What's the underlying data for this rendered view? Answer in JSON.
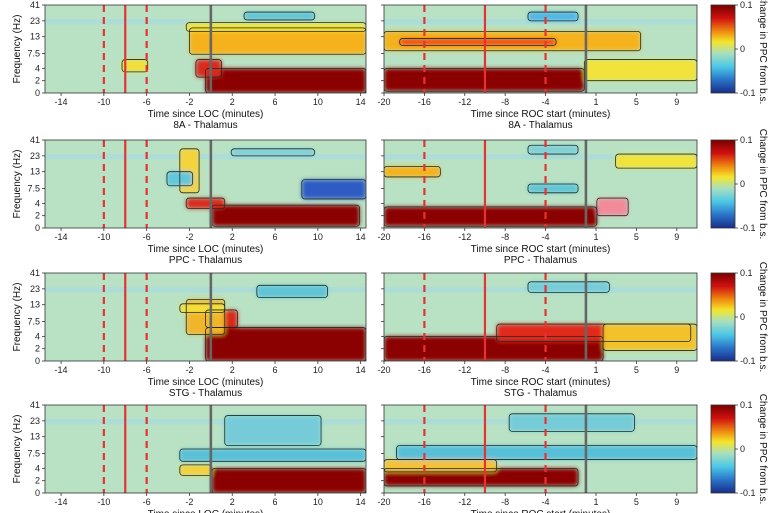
{
  "chart_data": {
    "type": "heatmap",
    "colorbar_ticks": [
      "0.1",
      "0",
      "-0.1"
    ],
    "colorbar_range": [
      -0.1,
      0.1
    ],
    "colorbar_label": "Change in PPC from b.s.",
    "y_label": "Frequency (Hz)",
    "y_ticks": [
      "41",
      "23",
      "13",
      "7.5",
      "4",
      "2",
      "0"
    ],
    "left_xlabel": "Time since LOC (minutes)",
    "right_xlabel": "Time since ROC start (minutes)",
    "left_xticks": [
      "-14",
      "-10",
      "-6",
      "-2",
      "2",
      "6",
      "10",
      "14"
    ],
    "right_xticks": [
      "-20",
      "-16",
      "-12",
      "-8",
      "-4",
      "1",
      "5",
      "9"
    ],
    "left_xlim": [
      -15.5,
      14.5
    ],
    "right_xlim": [
      -20,
      11
    ],
    "rows": [
      {
        "title": "",
        "left_title": "",
        "right_title": ""
      },
      {
        "title": "8A - Thalamus",
        "left_title": "8A - Thalamus",
        "right_title": "8A - Thalamus"
      },
      {
        "title": "PPC - Thalamus",
        "left_title": "PPC - Thalamus",
        "right_title": "PPC - Thalamus"
      },
      {
        "title": "STG - Thalamus",
        "left_title": "STG - Thalamus",
        "right_title": "STG - Thalamus"
      }
    ],
    "markers": {
      "left": {
        "dashed_red": [
          -10,
          -6
        ],
        "solid_red": [
          -8
        ],
        "solid_gray": [
          0
        ]
      },
      "right": {
        "dashed_red": [
          -16,
          -4
        ],
        "solid_red": [
          -10
        ],
        "solid_gray": [
          0
        ]
      }
    },
    "colors": {
      "positive": "#8b0000",
      "neutral": "#b8e0c8",
      "negative": "#1f3a9e"
    }
  }
}
